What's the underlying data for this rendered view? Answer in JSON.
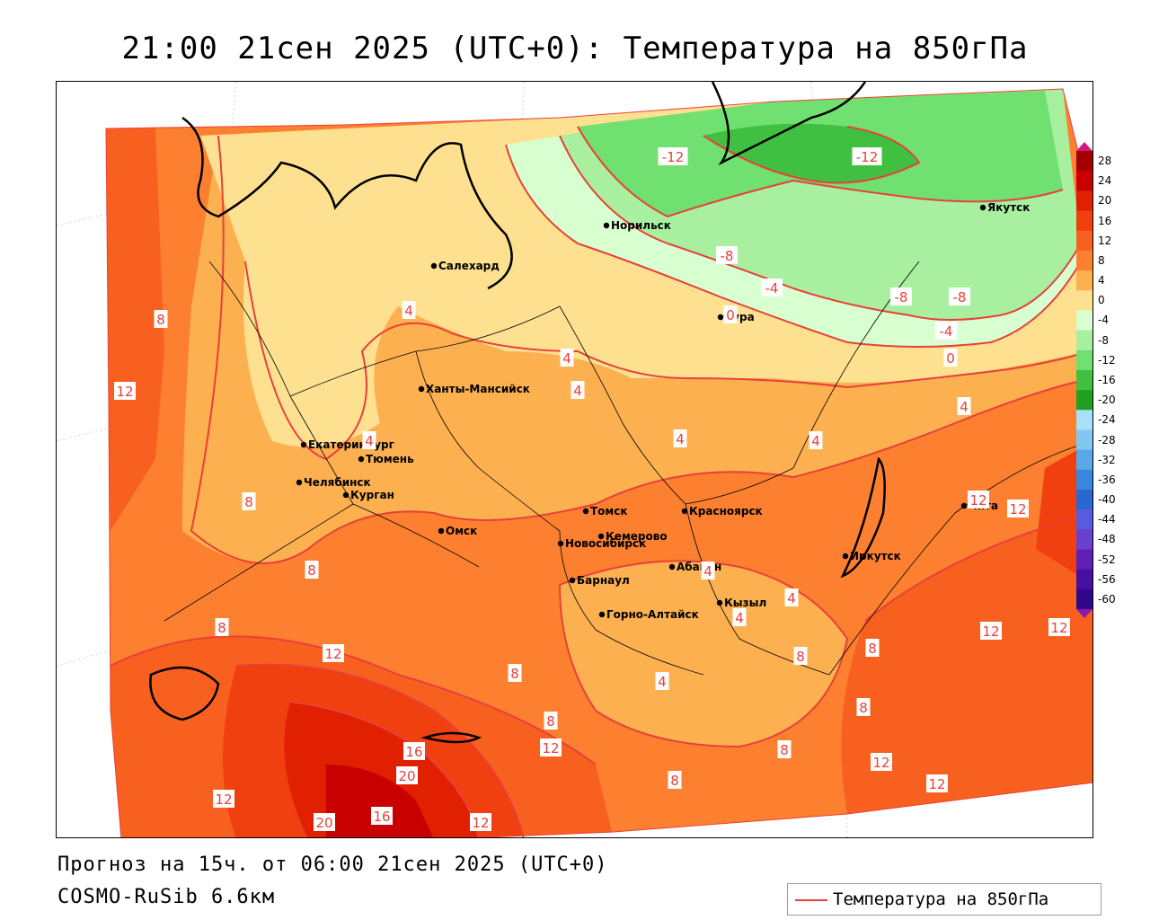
{
  "title": "21:00 21сен 2025 (UTC+0): Температура на 850гПа",
  "footer": {
    "forecast": "Прогноз на 15ч. от 06:00 21сен 2025 (UTC+0)",
    "model": "COSMO-RuSib 6.6км"
  },
  "legend": {
    "label": "Температура на 850гПа",
    "color": "#e8403a"
  },
  "colorbar": {
    "ticks": [
      "28",
      "24",
      "20",
      "16",
      "12",
      "8",
      "4",
      "0",
      "-4",
      "-8",
      "-12",
      "-16",
      "-20",
      "-24",
      "-28",
      "-32",
      "-36",
      "-40",
      "-44",
      "-48",
      "-52",
      "-56",
      "-60"
    ],
    "colors": [
      "#a40000",
      "#c80000",
      "#e02000",
      "#f04010",
      "#f86020",
      "#fc8030",
      "#fcb050",
      "#fde090",
      "#d8ffd0",
      "#a8f0a0",
      "#70e070",
      "#40c040",
      "#20a020",
      "#a8e0f8",
      "#80c8f0",
      "#5aa8e8",
      "#3888e0",
      "#2868d0",
      "#5a5ae0",
      "#6a40d0",
      "#6020b8",
      "#4810a0",
      "#30088a"
    ]
  },
  "cities": [
    {
      "name": "Норильск"
    },
    {
      "name": "Якутск"
    },
    {
      "name": "Салехард"
    },
    {
      "name": "Тура"
    },
    {
      "name": "Ханты-Мансийск"
    },
    {
      "name": "Екатеринбург"
    },
    {
      "name": "Тюмень"
    },
    {
      "name": "Челябинск"
    },
    {
      "name": "Курган"
    },
    {
      "name": "Омск"
    },
    {
      "name": "Новосибирск"
    },
    {
      "name": "Томск"
    },
    {
      "name": "Кемерово"
    },
    {
      "name": "Красноярск"
    },
    {
      "name": "Барнаул"
    },
    {
      "name": "Абакан"
    },
    {
      "name": "Иркутск"
    },
    {
      "name": "Чита"
    },
    {
      "name": "Горно-Алтайск"
    },
    {
      "name": "Кызыл"
    }
  ],
  "isotherm_labels": [
    "-12",
    "-12",
    "-8",
    "-8",
    "-8",
    "-4",
    "-4",
    "0",
    "0",
    "4",
    "4",
    "4",
    "4",
    "4",
    "4",
    "4",
    "4",
    "4",
    "4",
    "4",
    "8",
    "8",
    "8",
    "8",
    "8",
    "8",
    "8",
    "8",
    "8",
    "8",
    "8",
    "12",
    "12",
    "12",
    "12",
    "12",
    "12",
    "12",
    "12",
    "12",
    "12",
    "12",
    "16",
    "16",
    "20",
    "20"
  ]
}
